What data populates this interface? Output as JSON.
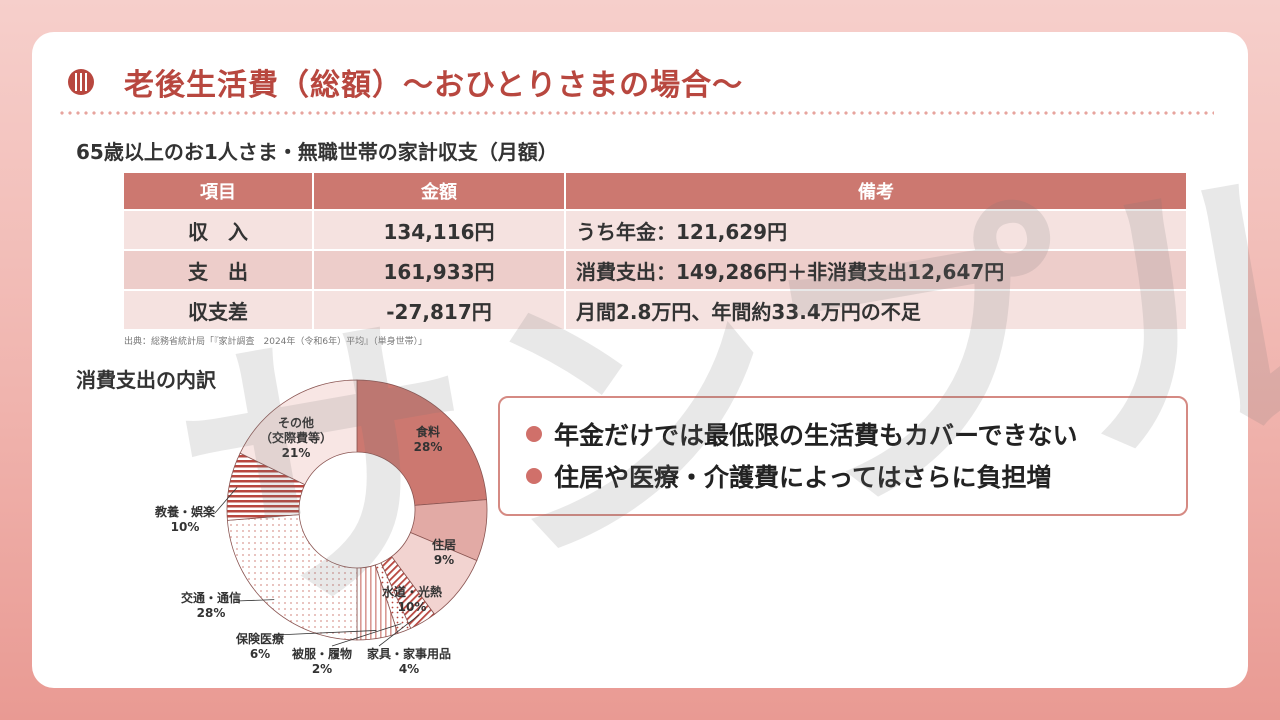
{
  "title": "老後生活費（総額）～おひとりさまの場合～",
  "subtitle": "65歳以上のお1人さま・無職世帯の家計収支（月額）",
  "table": {
    "headers": [
      "項目",
      "金額",
      "備考"
    ],
    "rows": [
      {
        "item": "収　入",
        "amount": "134,116円",
        "note": "うち年金：121,629円"
      },
      {
        "item": "支　出",
        "amount": "161,933円",
        "note": "消費支出：149,286円＋非消費支出12,647円"
      },
      {
        "item": "収支差",
        "amount": "-27,817円",
        "note": "月間2.8万円、年間約33.4万円の不足"
      }
    ]
  },
  "source": "出典：総務省統計局「『家計調査　2024年（令和6年）平均』（単身世帯）」",
  "pie_title": "消費支出の内訳",
  "chart_data": {
    "type": "pie",
    "title": "消費支出の内訳",
    "slices": [
      {
        "label": "食料",
        "value": 28
      },
      {
        "label": "住居",
        "value": 9
      },
      {
        "label": "水道・光熱",
        "value": 10
      },
      {
        "label": "家具・家事用品",
        "value": 4
      },
      {
        "label": "被服・履物",
        "value": 2
      },
      {
        "label": "保険医療",
        "value": 6
      },
      {
        "label": "交通・通信",
        "value": 28
      },
      {
        "label": "教養・娯楽",
        "value": 10
      },
      {
        "label": "その他（交際費等）",
        "value": 21
      }
    ],
    "label_text": [
      [
        "食料",
        "28%"
      ],
      [
        "住居",
        "9%"
      ],
      [
        "水道・光熱",
        "10%"
      ],
      [
        "家具・家事用品",
        "4%"
      ],
      [
        "被服・履物",
        "2%"
      ],
      [
        "保険医療",
        "6%"
      ],
      [
        "交通・通信",
        "28%"
      ],
      [
        "教養・娯楽",
        "10%"
      ],
      [
        "その他",
        "（交際費等）",
        "21%"
      ]
    ]
  },
  "bullets": [
    "年金だけでは最低限の生活費もカバーできない",
    "住居や医療・介護費によってはさらに負担増"
  ],
  "watermark": "サンプル",
  "colors": {
    "accent": "#b8473f",
    "header": "#cc7870",
    "food": "#cc7870",
    "housing": "#e2aaa5",
    "utilities": "#f2d3d0"
  }
}
